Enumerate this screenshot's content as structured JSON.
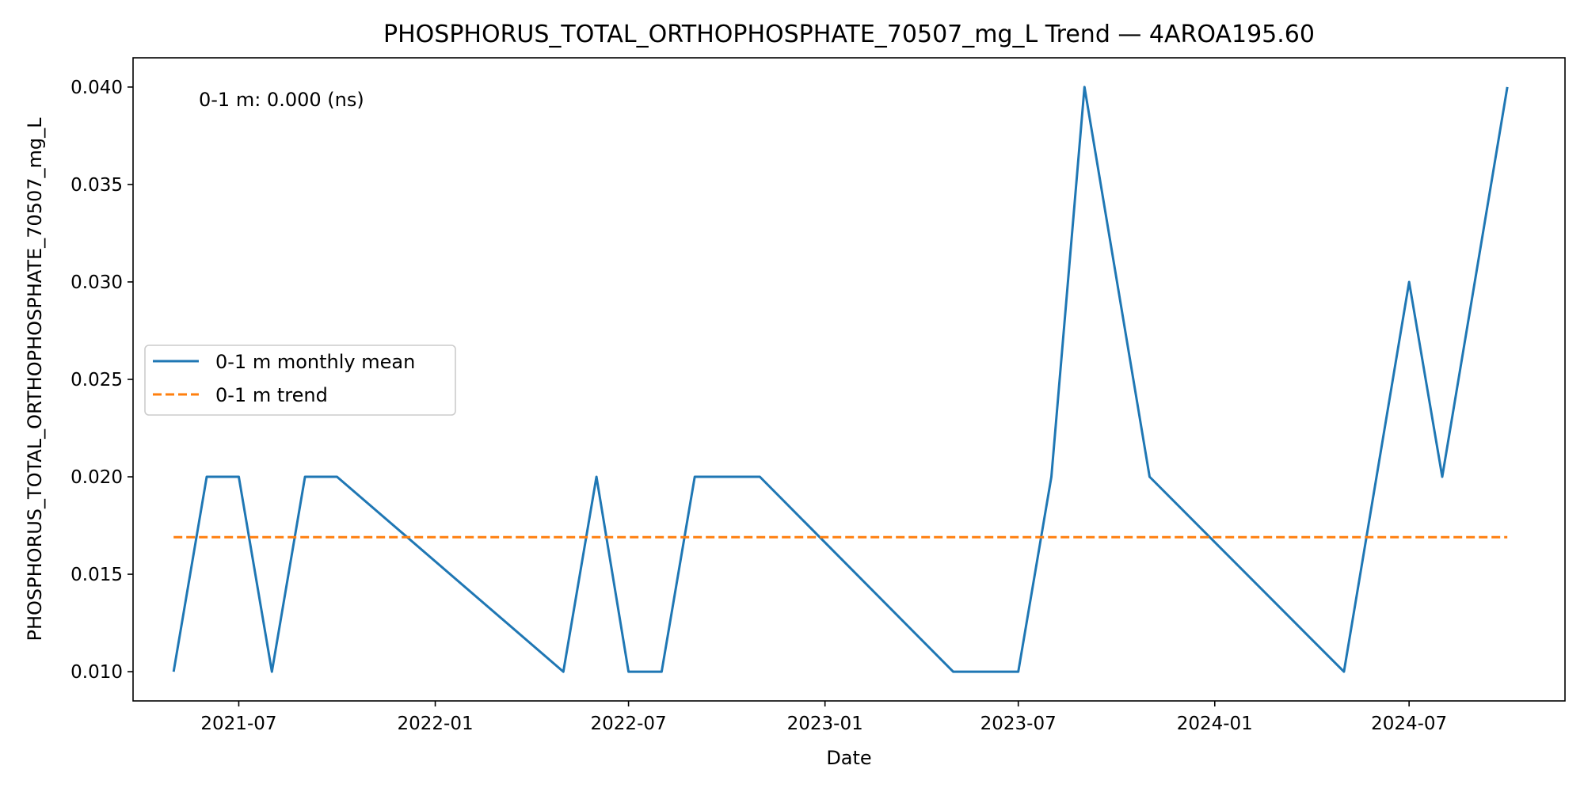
{
  "chart_data": {
    "type": "line",
    "title": "PHOSPHORUS_TOTAL_ORTHOPHOSPHATE_70507_mg_L Trend — 4AROA195.60",
    "xlabel": "Date",
    "ylabel": "PHOSPHORUS_TOTAL_ORTHOPHOSPHATE_70507_mg_L",
    "xlim": [
      "2021-03-24",
      "2024-11-24"
    ],
    "ylim": [
      0.0085,
      0.0415
    ],
    "x_ticks": [
      "2021-07",
      "2022-01",
      "2022-07",
      "2023-01",
      "2023-07",
      "2024-01",
      "2024-07"
    ],
    "y_ticks": [
      "0.010",
      "0.015",
      "0.020",
      "0.025",
      "0.030",
      "0.035",
      "0.040"
    ],
    "grid": false,
    "legend_position": "center-left",
    "annotation": "0-1 m: 0.000 (ns)",
    "series": [
      {
        "name": "0-1 m monthly mean",
        "color": "#1f77b4",
        "style": "solid",
        "x": [
          "2021-05-01",
          "2021-06-01",
          "2021-07-01",
          "2021-08-01",
          "2021-09-01",
          "2021-10-01",
          "2022-05-01",
          "2022-06-01",
          "2022-07-01",
          "2022-08-01",
          "2022-09-01",
          "2022-10-01",
          "2022-11-01",
          "2023-05-01",
          "2023-06-01",
          "2023-07-01",
          "2023-08-01",
          "2023-09-01",
          "2023-11-01",
          "2024-05-01",
          "2024-07-01",
          "2024-08-01",
          "2024-10-01"
        ],
        "values": [
          0.01,
          0.02,
          0.02,
          0.01,
          0.02,
          0.02,
          0.01,
          0.02,
          0.01,
          0.01,
          0.02,
          0.02,
          0.02,
          0.01,
          0.01,
          0.01,
          0.02,
          0.04,
          0.02,
          0.01,
          0.03,
          0.02,
          0.04
        ]
      },
      {
        "name": "0-1 m trend",
        "color": "#ff7f0e",
        "style": "dashed",
        "x": [
          "2021-05-01",
          "2024-10-01"
        ],
        "values": [
          0.0169,
          0.0169
        ]
      }
    ]
  }
}
